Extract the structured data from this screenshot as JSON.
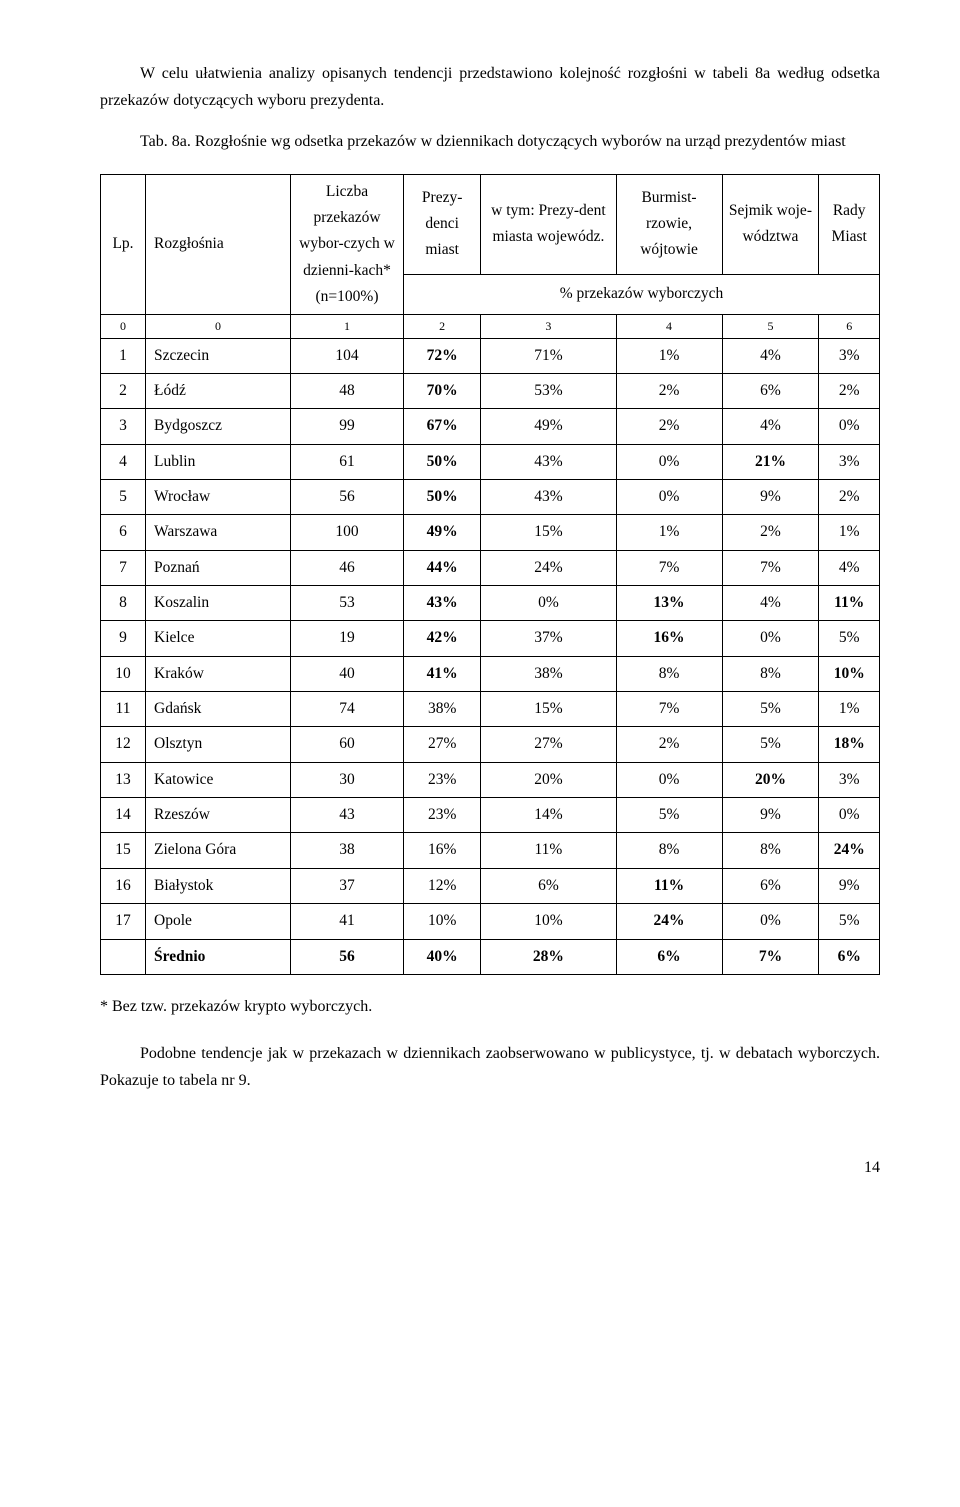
{
  "para1": "W celu ułatwienia analizy opisanych tendencji przedstawiono kolejność rozgłośni w tabeli 8a według odsetka przekazów dotyczących wyboru prezydenta.",
  "table_title": "Tab. 8a. Rozgłośnie wg odsetka przekazów w dziennikach dotyczących wyborów na urząd prezydentów miast",
  "headers": {
    "lp": "Lp.",
    "rozglosnia": "Rozgłośnia",
    "liczba": "Liczba przekazów wybor-czych w dzienni-kach* (n=100%)",
    "prezydenci": "Prezy-denci miast",
    "wtym": "w tym: Prezy-dent miasta wojewódz.",
    "burm": "Burmist-rzowie, wójtowie",
    "sejmik": "Sejmik woje-wództwa",
    "rady": "Rady Miast",
    "pct_header": "% przekazów wyborczych"
  },
  "idx_row": [
    "0",
    "0",
    "1",
    "2",
    "3",
    "4",
    "5",
    "6"
  ],
  "rows": [
    {
      "lp": "1",
      "name": "Szczecin",
      "n": "104",
      "c": [
        "72%",
        "71%",
        "1%",
        "4%",
        "3%"
      ],
      "bold": [
        true,
        false,
        false,
        false,
        false
      ]
    },
    {
      "lp": "2",
      "name": "Łódź",
      "n": "48",
      "c": [
        "70%",
        "53%",
        "2%",
        "6%",
        "2%"
      ],
      "bold": [
        true,
        false,
        false,
        false,
        false
      ]
    },
    {
      "lp": "3",
      "name": "Bydgoszcz",
      "n": "99",
      "c": [
        "67%",
        "49%",
        "2%",
        "4%",
        "0%"
      ],
      "bold": [
        true,
        false,
        false,
        false,
        false
      ]
    },
    {
      "lp": "4",
      "name": "Lublin",
      "n": "61",
      "c": [
        "50%",
        "43%",
        "0%",
        "21%",
        "3%"
      ],
      "bold": [
        true,
        false,
        false,
        true,
        false
      ]
    },
    {
      "lp": "5",
      "name": "Wrocław",
      "n": "56",
      "c": [
        "50%",
        "43%",
        "0%",
        "9%",
        "2%"
      ],
      "bold": [
        true,
        false,
        false,
        false,
        false
      ]
    },
    {
      "lp": "6",
      "name": "Warszawa",
      "n": "100",
      "c": [
        "49%",
        "15%",
        "1%",
        "2%",
        "1%"
      ],
      "bold": [
        true,
        false,
        false,
        false,
        false
      ]
    },
    {
      "lp": "7",
      "name": "Poznań",
      "n": "46",
      "c": [
        "44%",
        "24%",
        "7%",
        "7%",
        "4%"
      ],
      "bold": [
        true,
        false,
        false,
        false,
        false
      ]
    },
    {
      "lp": "8",
      "name": "Koszalin",
      "n": "53",
      "c": [
        "43%",
        "0%",
        "13%",
        "4%",
        "11%"
      ],
      "bold": [
        true,
        false,
        true,
        false,
        true
      ]
    },
    {
      "lp": "9",
      "name": "Kielce",
      "n": "19",
      "c": [
        "42%",
        "37%",
        "16%",
        "0%",
        "5%"
      ],
      "bold": [
        true,
        false,
        true,
        false,
        false
      ]
    },
    {
      "lp": "10",
      "name": "Kraków",
      "n": "40",
      "c": [
        "41%",
        "38%",
        "8%",
        "8%",
        "10%"
      ],
      "bold": [
        true,
        false,
        false,
        false,
        true
      ]
    },
    {
      "lp": "11",
      "name": "Gdańsk",
      "n": "74",
      "c": [
        "38%",
        "15%",
        "7%",
        "5%",
        "1%"
      ],
      "bold": [
        false,
        false,
        false,
        false,
        false
      ]
    },
    {
      "lp": "12",
      "name": "Olsztyn",
      "n": "60",
      "c": [
        "27%",
        "27%",
        "2%",
        "5%",
        "18%"
      ],
      "bold": [
        false,
        false,
        false,
        false,
        true
      ]
    },
    {
      "lp": "13",
      "name": "Katowice",
      "n": "30",
      "c": [
        "23%",
        "20%",
        "0%",
        "20%",
        "3%"
      ],
      "bold": [
        false,
        false,
        false,
        true,
        false
      ]
    },
    {
      "lp": "14",
      "name": "Rzeszów",
      "n": "43",
      "c": [
        "23%",
        "14%",
        "5%",
        "9%",
        "0%"
      ],
      "bold": [
        false,
        false,
        false,
        false,
        false
      ]
    },
    {
      "lp": "15",
      "name": "Zielona Góra",
      "n": "38",
      "c": [
        "16%",
        "11%",
        "8%",
        "8%",
        "24%"
      ],
      "bold": [
        false,
        false,
        false,
        false,
        true
      ]
    },
    {
      "lp": "16",
      "name": "Białystok",
      "n": "37",
      "c": [
        "12%",
        "6%",
        "11%",
        "6%",
        "9%"
      ],
      "bold": [
        false,
        false,
        true,
        false,
        false
      ]
    },
    {
      "lp": "17",
      "name": "Opole",
      "n": "41",
      "c": [
        "10%",
        "10%",
        "24%",
        "0%",
        "5%"
      ],
      "bold": [
        false,
        false,
        true,
        false,
        false
      ]
    }
  ],
  "avg_row": {
    "lp": "",
    "name": "Średnio",
    "n": "56",
    "c": [
      "40%",
      "28%",
      "6%",
      "7%",
      "6%"
    ]
  },
  "footnote": "* Bez tzw. przekazów krypto wyborczych.",
  "para2": "Podobne tendencje jak w przekazach w dziennikach zaobserwowano w publicystyce, tj. w debatach wyborczych. Pokazuje to tabela nr 9.",
  "page_number": "14"
}
